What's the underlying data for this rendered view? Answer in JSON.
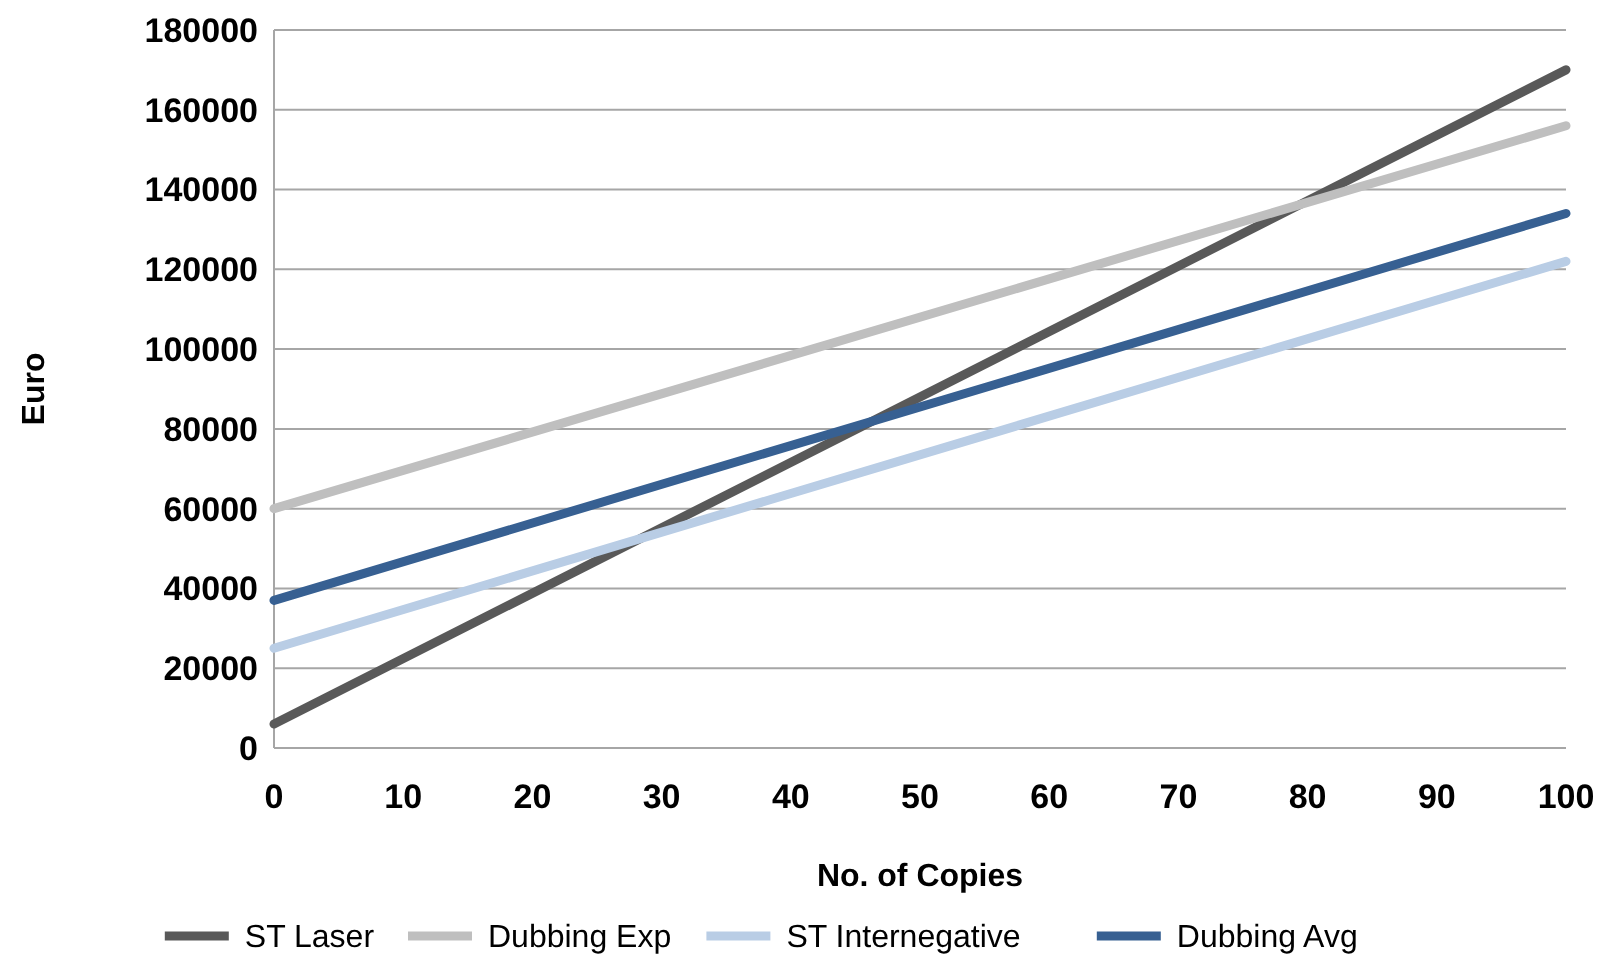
{
  "chart_data": {
    "type": "line",
    "xlabel": "No. of Copies",
    "ylabel": "Euro",
    "x": [
      0,
      100
    ],
    "series": [
      {
        "name": "ST Laser",
        "color": "#595959",
        "values": [
          6000,
          170000
        ]
      },
      {
        "name": "Dubbing Exp",
        "color": "#bfbfbf",
        "values": [
          60000,
          156000
        ]
      },
      {
        "name": "ST Internegative",
        "color": "#b9cde5",
        "values": [
          25000,
          122000
        ]
      },
      {
        "name": "Dubbing Avg",
        "color": "#376092",
        "values": [
          37000,
          134000
        ]
      }
    ],
    "xlim": [
      0,
      100
    ],
    "xticks": [
      0,
      10,
      20,
      30,
      40,
      50,
      60,
      70,
      80,
      90,
      100
    ],
    "ylim": [
      0,
      180000
    ],
    "yticks": [
      0,
      20000,
      40000,
      60000,
      80000,
      100000,
      120000,
      140000,
      160000,
      180000
    ],
    "grid": "y",
    "legend": "bottom",
    "marker": "none",
    "line_style": "solid"
  }
}
